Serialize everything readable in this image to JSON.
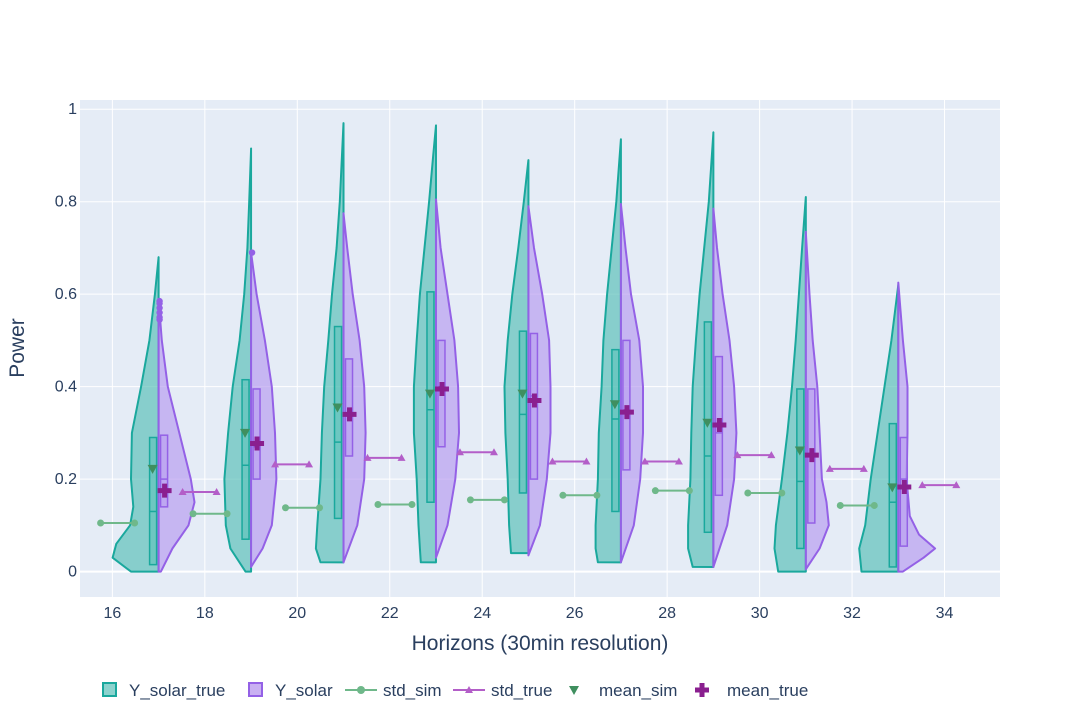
{
  "chart_data": {
    "type": "violin",
    "title": "",
    "xlabel": "Horizons (30min resolution)",
    "ylabel": "Power",
    "xlim": [
      15.3,
      35.2
    ],
    "ylim": [
      -0.055,
      1.02
    ],
    "x_ticks": [
      16,
      18,
      20,
      22,
      24,
      26,
      28,
      30,
      32,
      34
    ],
    "y_ticks": [
      0,
      0.2,
      0.4,
      0.6,
      0.8,
      1
    ],
    "y_tick_labels": [
      "0",
      "0.2",
      "0.4",
      "0.6",
      "0.8",
      "1"
    ],
    "grid": true,
    "legend_position": "bottom",
    "legend": [
      {
        "key": "Y_solar_true",
        "label": "Y_solar_true",
        "symbol": "box",
        "color": "#1aa89d"
      },
      {
        "key": "Y_solar",
        "label": "Y_solar",
        "symbol": "box",
        "color": "#9461e6"
      },
      {
        "key": "std_sim",
        "label": "std_sim",
        "symbol": "line-circle",
        "color": "#6fb88a"
      },
      {
        "key": "std_true",
        "label": "std_true",
        "symbol": "line-triangle",
        "color": "#b35ec8"
      },
      {
        "key": "mean_sim",
        "label": "mean_sim",
        "symbol": "triangle-down",
        "color": "#3f8f5f"
      },
      {
        "key": "mean_true",
        "label": "mean_true",
        "symbol": "cross",
        "color": "#8a1f8f"
      }
    ],
    "colors": {
      "true_fill": "#54bfb6",
      "true_line": "#1aa89d",
      "pred_fill": "#b59af0",
      "pred_line": "#9461e6",
      "std_sim": "#6fb88a",
      "std_true": "#b35ec8",
      "mean_sim": "#3f8f5f",
      "mean_true": "#8a1f8f"
    },
    "horizons": [
      {
        "x": 17,
        "true": {
          "min": 0,
          "max": 0.68,
          "q1": 0.015,
          "median": 0.13,
          "q3": 0.29,
          "profile": [
            [
              0,
              0.6
            ],
            [
              0.03,
              1.0
            ],
            [
              0.06,
              0.92
            ],
            [
              0.1,
              0.62
            ],
            [
              0.14,
              0.55
            ],
            [
              0.2,
              0.6
            ],
            [
              0.3,
              0.58
            ],
            [
              0.4,
              0.38
            ],
            [
              0.5,
              0.2
            ],
            [
              0.6,
              0.08
            ],
            [
              0.68,
              0
            ]
          ]
        },
        "pred": {
          "min": 0,
          "max": 0.59,
          "q1": 0.14,
          "median": 0.2,
          "q3": 0.295,
          "profile": [
            [
              0,
              0.05
            ],
            [
              0.05,
              0.3
            ],
            [
              0.1,
              0.65
            ],
            [
              0.15,
              0.78
            ],
            [
              0.2,
              0.7
            ],
            [
              0.3,
              0.45
            ],
            [
              0.4,
              0.2
            ],
            [
              0.5,
              0.07
            ],
            [
              0.59,
              0
            ]
          ]
        },
        "outliers": [
          0.545,
          0.55,
          0.56,
          0.57,
          0.58,
          0.585
        ],
        "mean_sim": 0.222,
        "mean_true": 0.175,
        "std_sim": 0.105,
        "std_true": 0.172
      },
      {
        "x": 19,
        "true": {
          "min": 0,
          "max": 0.915,
          "q1": 0.07,
          "median": 0.23,
          "q3": 0.415,
          "profile": [
            [
              0,
              0.12
            ],
            [
              0.05,
              0.45
            ],
            [
              0.1,
              0.55
            ],
            [
              0.2,
              0.58
            ],
            [
              0.3,
              0.5
            ],
            [
              0.4,
              0.4
            ],
            [
              0.5,
              0.25
            ],
            [
              0.6,
              0.15
            ],
            [
              0.7,
              0.08
            ],
            [
              0.8,
              0.04
            ],
            [
              0.915,
              0
            ]
          ]
        },
        "pred": {
          "min": 0.01,
          "max": 0.69,
          "q1": 0.2,
          "median": 0.27,
          "q3": 0.395,
          "profile": [
            [
              0.01,
              0
            ],
            [
              0.05,
              0.25
            ],
            [
              0.1,
              0.45
            ],
            [
              0.2,
              0.55
            ],
            [
              0.3,
              0.52
            ],
            [
              0.4,
              0.45
            ],
            [
              0.5,
              0.3
            ],
            [
              0.6,
              0.12
            ],
            [
              0.69,
              0
            ]
          ]
        },
        "outliers": [
          0.69
        ],
        "mean_sim": 0.3,
        "mean_true": 0.277,
        "std_sim": 0.125,
        "std_true": 0.232
      },
      {
        "x": 21,
        "true": {
          "min": 0.02,
          "max": 0.97,
          "q1": 0.115,
          "median": 0.28,
          "q3": 0.53,
          "profile": [
            [
              0.02,
              0.5
            ],
            [
              0.05,
              0.6
            ],
            [
              0.1,
              0.57
            ],
            [
              0.2,
              0.5
            ],
            [
              0.3,
              0.47
            ],
            [
              0.4,
              0.42
            ],
            [
              0.5,
              0.33
            ],
            [
              0.6,
              0.25
            ],
            [
              0.7,
              0.15
            ],
            [
              0.8,
              0.08
            ],
            [
              0.97,
              0
            ]
          ]
        },
        "pred": {
          "min": 0.02,
          "max": 0.775,
          "q1": 0.25,
          "median": 0.34,
          "q3": 0.46,
          "profile": [
            [
              0.02,
              0
            ],
            [
              0.1,
              0.3
            ],
            [
              0.2,
              0.45
            ],
            [
              0.3,
              0.48
            ],
            [
              0.4,
              0.45
            ],
            [
              0.5,
              0.35
            ],
            [
              0.6,
              0.2
            ],
            [
              0.7,
              0.08
            ],
            [
              0.775,
              0
            ]
          ]
        },
        "outliers": [],
        "mean_sim": 0.355,
        "mean_true": 0.34,
        "std_sim": 0.138,
        "std_true": 0.246
      },
      {
        "x": 23,
        "true": {
          "min": 0.02,
          "max": 0.965,
          "q1": 0.15,
          "median": 0.35,
          "q3": 0.605,
          "profile": [
            [
              0.02,
              0.33
            ],
            [
              0.05,
              0.35
            ],
            [
              0.1,
              0.38
            ],
            [
              0.2,
              0.42
            ],
            [
              0.3,
              0.48
            ],
            [
              0.4,
              0.48
            ],
            [
              0.5,
              0.42
            ],
            [
              0.6,
              0.35
            ],
            [
              0.7,
              0.25
            ],
            [
              0.8,
              0.15
            ],
            [
              0.9,
              0.06
            ],
            [
              0.965,
              0
            ]
          ]
        },
        "pred": {
          "min": 0.03,
          "max": 0.805,
          "q1": 0.27,
          "median": 0.4,
          "q3": 0.5,
          "profile": [
            [
              0.03,
              0
            ],
            [
              0.1,
              0.25
            ],
            [
              0.2,
              0.42
            ],
            [
              0.3,
              0.5
            ],
            [
              0.4,
              0.48
            ],
            [
              0.5,
              0.4
            ],
            [
              0.6,
              0.25
            ],
            [
              0.7,
              0.1
            ],
            [
              0.805,
              0
            ]
          ]
        },
        "outliers": [],
        "mean_sim": 0.385,
        "mean_true": 0.395,
        "std_sim": 0.145,
        "std_true": 0.258
      },
      {
        "x": 25,
        "true": {
          "min": 0.04,
          "max": 0.89,
          "q1": 0.17,
          "median": 0.34,
          "q3": 0.52,
          "profile": [
            [
              0.04,
              0.38
            ],
            [
              0.1,
              0.42
            ],
            [
              0.2,
              0.45
            ],
            [
              0.3,
              0.5
            ],
            [
              0.4,
              0.52
            ],
            [
              0.5,
              0.45
            ],
            [
              0.6,
              0.35
            ],
            [
              0.7,
              0.22
            ],
            [
              0.8,
              0.1
            ],
            [
              0.89,
              0
            ]
          ]
        },
        "pred": {
          "min": 0.035,
          "max": 0.79,
          "q1": 0.2,
          "median": 0.38,
          "q3": 0.515,
          "profile": [
            [
              0.035,
              0
            ],
            [
              0.1,
              0.25
            ],
            [
              0.2,
              0.4
            ],
            [
              0.3,
              0.48
            ],
            [
              0.4,
              0.48
            ],
            [
              0.5,
              0.45
            ],
            [
              0.6,
              0.3
            ],
            [
              0.7,
              0.12
            ],
            [
              0.79,
              0
            ]
          ]
        },
        "outliers": [],
        "mean_sim": 0.385,
        "mean_true": 0.37,
        "std_sim": 0.155,
        "std_true": 0.238
      },
      {
        "x": 27,
        "true": {
          "min": 0.02,
          "max": 0.935,
          "q1": 0.13,
          "median": 0.33,
          "q3": 0.48,
          "profile": [
            [
              0.02,
              0.5
            ],
            [
              0.05,
              0.55
            ],
            [
              0.1,
              0.55
            ],
            [
              0.2,
              0.5
            ],
            [
              0.3,
              0.48
            ],
            [
              0.4,
              0.42
            ],
            [
              0.5,
              0.38
            ],
            [
              0.6,
              0.3
            ],
            [
              0.7,
              0.2
            ],
            [
              0.8,
              0.1
            ],
            [
              0.935,
              0
            ]
          ]
        },
        "pred": {
          "min": 0.02,
          "max": 0.795,
          "q1": 0.22,
          "median": 0.35,
          "q3": 0.5,
          "profile": [
            [
              0.02,
              0
            ],
            [
              0.1,
              0.28
            ],
            [
              0.2,
              0.42
            ],
            [
              0.3,
              0.48
            ],
            [
              0.4,
              0.48
            ],
            [
              0.5,
              0.4
            ],
            [
              0.6,
              0.22
            ],
            [
              0.7,
              0.1
            ],
            [
              0.795,
              0
            ]
          ]
        },
        "outliers": [],
        "mean_sim": 0.362,
        "mean_true": 0.345,
        "std_sim": 0.165,
        "std_true": 0.238
      },
      {
        "x": 29,
        "true": {
          "min": 0.01,
          "max": 0.95,
          "q1": 0.085,
          "median": 0.25,
          "q3": 0.54,
          "profile": [
            [
              0.01,
              0.45
            ],
            [
              0.05,
              0.55
            ],
            [
              0.1,
              0.55
            ],
            [
              0.2,
              0.5
            ],
            [
              0.3,
              0.48
            ],
            [
              0.4,
              0.45
            ],
            [
              0.5,
              0.38
            ],
            [
              0.6,
              0.3
            ],
            [
              0.7,
              0.2
            ],
            [
              0.8,
              0.1
            ],
            [
              0.95,
              0
            ]
          ]
        },
        "pred": {
          "min": 0.01,
          "max": 0.785,
          "q1": 0.165,
          "median": 0.3,
          "q3": 0.465,
          "profile": [
            [
              0.01,
              0
            ],
            [
              0.1,
              0.3
            ],
            [
              0.2,
              0.45
            ],
            [
              0.3,
              0.5
            ],
            [
              0.4,
              0.45
            ],
            [
              0.5,
              0.35
            ],
            [
              0.6,
              0.2
            ],
            [
              0.7,
              0.08
            ],
            [
              0.785,
              0
            ]
          ]
        },
        "outliers": [],
        "mean_sim": 0.322,
        "mean_true": 0.317,
        "std_sim": 0.175,
        "std_true": 0.252
      },
      {
        "x": 31,
        "true": {
          "min": 0,
          "max": 0.81,
          "q1": 0.05,
          "median": 0.195,
          "q3": 0.395,
          "profile": [
            [
              0,
              0.6
            ],
            [
              0.05,
              0.68
            ],
            [
              0.1,
              0.65
            ],
            [
              0.2,
              0.52
            ],
            [
              0.3,
              0.4
            ],
            [
              0.4,
              0.3
            ],
            [
              0.5,
              0.22
            ],
            [
              0.6,
              0.15
            ],
            [
              0.7,
              0.08
            ],
            [
              0.81,
              0
            ]
          ]
        },
        "pred": {
          "min": 0.005,
          "max": 0.735,
          "q1": 0.105,
          "median": 0.25,
          "q3": 0.395,
          "profile": [
            [
              0.005,
              0
            ],
            [
              0.05,
              0.3
            ],
            [
              0.1,
              0.5
            ],
            [
              0.15,
              0.45
            ],
            [
              0.2,
              0.35
            ],
            [
              0.3,
              0.3
            ],
            [
              0.4,
              0.25
            ],
            [
              0.5,
              0.15
            ],
            [
              0.6,
              0.08
            ],
            [
              0.735,
              0
            ]
          ]
        },
        "outliers": [],
        "mean_sim": 0.262,
        "mean_true": 0.252,
        "std_sim": 0.17,
        "std_true": 0.222
      },
      {
        "x": 33,
        "true": {
          "min": 0,
          "max": 0.62,
          "q1": 0.01,
          "median": 0.15,
          "q3": 0.32,
          "profile": [
            [
              0,
              0.8
            ],
            [
              0.05,
              0.85
            ],
            [
              0.1,
              0.72
            ],
            [
              0.2,
              0.6
            ],
            [
              0.3,
              0.45
            ],
            [
              0.4,
              0.3
            ],
            [
              0.5,
              0.15
            ],
            [
              0.62,
              0
            ]
          ]
        },
        "pred": {
          "min": 0,
          "max": 0.625,
          "q1": 0.055,
          "median": 0.2,
          "q3": 0.29,
          "profile": [
            [
              0,
              0.1
            ],
            [
              0.03,
              0.55
            ],
            [
              0.05,
              0.8
            ],
            [
              0.08,
              0.45
            ],
            [
              0.12,
              0.25
            ],
            [
              0.2,
              0.18
            ],
            [
              0.3,
              0.2
            ],
            [
              0.4,
              0.2
            ],
            [
              0.5,
              0.1
            ],
            [
              0.625,
              0
            ]
          ]
        },
        "outliers": [],
        "mean_sim": 0.182,
        "mean_true": 0.183,
        "std_sim": 0.143,
        "std_true": 0.187
      }
    ]
  }
}
